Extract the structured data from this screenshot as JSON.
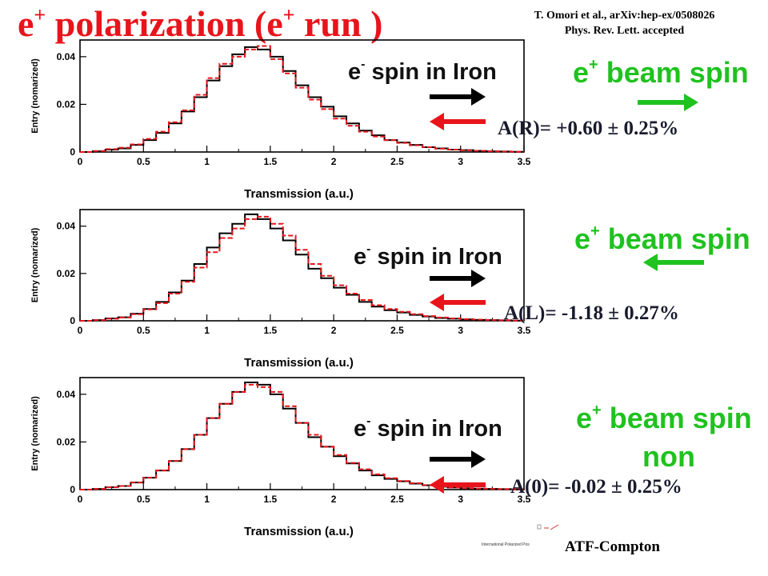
{
  "title": {
    "main": "e",
    "sup1": "+",
    "mid": " polarization (e",
    "sup2": "+",
    "end": " run )"
  },
  "citation": {
    "line1": "T. Omori et  al.,   arXiv:hep-ex/0508026",
    "line2": "Phys. Rev. Lett. accepted"
  },
  "labels": {
    "iron_prefix": "e",
    "iron_sup": "-",
    "iron_suffix": " spin in Iron",
    "beam_prefix": "e",
    "beam_sup": "+",
    "beam_suffix": " beam spin",
    "non": "non"
  },
  "asymmetries": [
    "A(R)= +0.60 ± 0.25%",
    "A(L)= -1.18 ± 0.27%",
    "A(0)= -0.02 ± 0.25%"
  ],
  "footer": "ATF-Compton",
  "logo_text": "International Polarized Pos",
  "colors": {
    "title": "#e8141c",
    "beam": "#1fc21f",
    "black_hist": "#000000",
    "red_hist": "#e8141c"
  },
  "chart_data": [
    {
      "type": "line",
      "style": "histogram",
      "xlabel": "Transmission (a.u.)",
      "ylabel": "Entry (nomarized)",
      "xlim": [
        0,
        3.5
      ],
      "ylim": [
        0,
        0.047
      ],
      "xticks": [
        "0",
        "0.5",
        "1",
        "1.5",
        "2",
        "2.5",
        "3",
        "3.5"
      ],
      "yticks": [
        "0",
        "0.02",
        "0.04"
      ],
      "series": [
        {
          "color": "black",
          "style": "solid",
          "x": [
            0.0,
            0.1,
            0.2,
            0.3,
            0.4,
            0.5,
            0.6,
            0.7,
            0.8,
            0.9,
            1.0,
            1.1,
            1.2,
            1.3,
            1.4,
            1.5,
            1.6,
            1.7,
            1.8,
            1.9,
            2.0,
            2.1,
            2.2,
            2.3,
            2.4,
            2.5,
            2.6,
            2.7,
            2.8,
            2.9,
            3.0,
            3.1,
            3.2,
            3.3,
            3.4
          ],
          "y": [
            0.0,
            0.0003,
            0.001,
            0.0015,
            0.003,
            0.005,
            0.008,
            0.012,
            0.017,
            0.023,
            0.03,
            0.036,
            0.041,
            0.044,
            0.043,
            0.04,
            0.034,
            0.028,
            0.023,
            0.019,
            0.015,
            0.012,
            0.009,
            0.007,
            0.005,
            0.004,
            0.003,
            0.002,
            0.0015,
            0.001,
            0.0008,
            0.0005,
            0.0003,
            0.0002,
            0.0001
          ]
        },
        {
          "color": "red",
          "style": "dashed",
          "x": [
            0.0,
            0.1,
            0.2,
            0.3,
            0.4,
            0.5,
            0.6,
            0.7,
            0.8,
            0.9,
            1.0,
            1.1,
            1.2,
            1.3,
            1.4,
            1.5,
            1.6,
            1.7,
            1.8,
            1.9,
            2.0,
            2.1,
            2.2,
            2.3,
            2.4,
            2.5,
            2.6,
            2.7,
            2.8,
            2.9,
            3.0,
            3.1,
            3.2,
            3.3,
            3.4
          ],
          "y": [
            0.0,
            0.0004,
            0.0012,
            0.0018,
            0.0032,
            0.0055,
            0.0085,
            0.0125,
            0.0175,
            0.024,
            0.031,
            0.037,
            0.04,
            0.043,
            0.0445,
            0.039,
            0.033,
            0.027,
            0.022,
            0.018,
            0.014,
            0.011,
            0.0085,
            0.0065,
            0.005,
            0.0038,
            0.0028,
            0.002,
            0.0014,
            0.001,
            0.0007,
            0.0005,
            0.0003,
            0.0002,
            0.0001
          ]
        }
      ]
    },
    {
      "type": "line",
      "style": "histogram",
      "xlabel": "Transmission (a.u.)",
      "ylabel": "Entry (nomarized)",
      "xlim": [
        0,
        3.5
      ],
      "ylim": [
        0,
        0.047
      ],
      "xticks": [
        "0",
        "0.5",
        "1",
        "1.5",
        "2",
        "2.5",
        "3",
        "3.5"
      ],
      "yticks": [
        "0",
        "0.02",
        "0.04"
      ],
      "series": [
        {
          "color": "black",
          "style": "solid",
          "x": [
            0.0,
            0.1,
            0.2,
            0.3,
            0.4,
            0.5,
            0.6,
            0.7,
            0.8,
            0.9,
            1.0,
            1.1,
            1.2,
            1.3,
            1.4,
            1.5,
            1.6,
            1.7,
            1.8,
            1.9,
            2.0,
            2.1,
            2.2,
            2.3,
            2.4,
            2.5,
            2.6,
            2.7,
            2.8,
            2.9,
            3.0,
            3.1,
            3.2,
            3.3,
            3.4
          ],
          "y": [
            0.0,
            0.0003,
            0.001,
            0.0015,
            0.003,
            0.005,
            0.008,
            0.012,
            0.017,
            0.024,
            0.031,
            0.037,
            0.041,
            0.045,
            0.043,
            0.039,
            0.034,
            0.028,
            0.022,
            0.018,
            0.014,
            0.011,
            0.008,
            0.006,
            0.0045,
            0.0035,
            0.0025,
            0.0018,
            0.0012,
            0.0009,
            0.0006,
            0.0004,
            0.0003,
            0.0002,
            0.0001
          ]
        },
        {
          "color": "red",
          "style": "dashed",
          "x": [
            0.0,
            0.1,
            0.2,
            0.3,
            0.4,
            0.5,
            0.6,
            0.7,
            0.8,
            0.9,
            1.0,
            1.1,
            1.2,
            1.3,
            1.4,
            1.5,
            1.6,
            1.7,
            1.8,
            1.9,
            2.0,
            2.1,
            2.2,
            2.3,
            2.4,
            2.5,
            2.6,
            2.7,
            2.8,
            2.9,
            3.0,
            3.1,
            3.2,
            3.3,
            3.4
          ],
          "y": [
            0.0,
            0.0003,
            0.0009,
            0.0014,
            0.0028,
            0.0048,
            0.0075,
            0.0115,
            0.0165,
            0.0225,
            0.029,
            0.035,
            0.039,
            0.043,
            0.044,
            0.041,
            0.036,
            0.03,
            0.024,
            0.019,
            0.015,
            0.0115,
            0.0088,
            0.0066,
            0.005,
            0.0038,
            0.0028,
            0.002,
            0.0014,
            0.001,
            0.0007,
            0.0005,
            0.0003,
            0.0002,
            0.0001
          ]
        }
      ]
    },
    {
      "type": "line",
      "style": "histogram",
      "xlabel": "Transmission (a.u.)",
      "ylabel": "Entry (nomarized)",
      "xlim": [
        0,
        3.5
      ],
      "ylim": [
        0,
        0.047
      ],
      "xticks": [
        "0",
        "0.5",
        "1",
        "1.5",
        "2",
        "2.5",
        "3",
        "3.5"
      ],
      "yticks": [
        "0",
        "0.02",
        "0.04"
      ],
      "series": [
        {
          "color": "black",
          "style": "solid",
          "x": [
            0.0,
            0.1,
            0.2,
            0.3,
            0.4,
            0.5,
            0.6,
            0.7,
            0.8,
            0.9,
            1.0,
            1.1,
            1.2,
            1.3,
            1.4,
            1.5,
            1.6,
            1.7,
            1.8,
            1.9,
            2.0,
            2.1,
            2.2,
            2.3,
            2.4,
            2.5,
            2.6,
            2.7,
            2.8,
            2.9,
            3.0,
            3.1,
            3.2,
            3.3,
            3.4
          ],
          "y": [
            0.0,
            0.0003,
            0.001,
            0.0015,
            0.003,
            0.005,
            0.008,
            0.012,
            0.017,
            0.023,
            0.03,
            0.036,
            0.041,
            0.045,
            0.044,
            0.04,
            0.034,
            0.028,
            0.022,
            0.018,
            0.014,
            0.011,
            0.008,
            0.006,
            0.0045,
            0.0035,
            0.0025,
            0.0018,
            0.0012,
            0.0009,
            0.0006,
            0.0004,
            0.0003,
            0.0002,
            0.0001
          ]
        },
        {
          "color": "red",
          "style": "dashed",
          "x": [
            0.0,
            0.1,
            0.2,
            0.3,
            0.4,
            0.5,
            0.6,
            0.7,
            0.8,
            0.9,
            1.0,
            1.1,
            1.2,
            1.3,
            1.4,
            1.5,
            1.6,
            1.7,
            1.8,
            1.9,
            2.0,
            2.1,
            2.2,
            2.3,
            2.4,
            2.5,
            2.6,
            2.7,
            2.8,
            2.9,
            3.0,
            3.1,
            3.2,
            3.3,
            3.4
          ],
          "y": [
            0.0,
            0.0003,
            0.001,
            0.0015,
            0.003,
            0.005,
            0.008,
            0.012,
            0.017,
            0.023,
            0.03,
            0.036,
            0.041,
            0.044,
            0.043,
            0.041,
            0.035,
            0.028,
            0.023,
            0.018,
            0.0145,
            0.0112,
            0.0085,
            0.0064,
            0.0048,
            0.0036,
            0.0027,
            0.0019,
            0.0013,
            0.0009,
            0.0006,
            0.0004,
            0.0003,
            0.0002,
            0.0001
          ]
        }
      ]
    }
  ]
}
